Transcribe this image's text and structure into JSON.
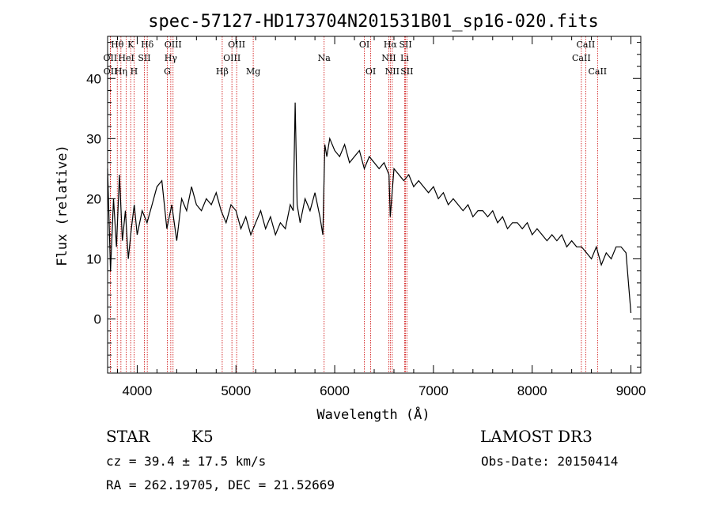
{
  "chart_data": {
    "type": "line",
    "title": "spec-57127-HD173704N201531B01_sp16-020.fits",
    "xlabel": "Wavelength (Å)",
    "ylabel": "Flux (relative)",
    "xlim": [
      3700,
      9100
    ],
    "ylim": [
      -9,
      47
    ],
    "xticks": [
      4000,
      5000,
      6000,
      7000,
      8000,
      9000
    ],
    "yticks": [
      0,
      10,
      20,
      30,
      40
    ],
    "grid": false,
    "series": [
      {
        "name": "spectrum",
        "x": [
          3700,
          3730,
          3760,
          3790,
          3820,
          3850,
          3880,
          3910,
          3940,
          3970,
          4000,
          4050,
          4100,
          4150,
          4200,
          4250,
          4300,
          4350,
          4400,
          4450,
          4500,
          4550,
          4600,
          4650,
          4700,
          4750,
          4800,
          4850,
          4900,
          4950,
          5000,
          5050,
          5100,
          5150,
          5200,
          5250,
          5300,
          5350,
          5400,
          5450,
          5500,
          5550,
          5580,
          5600,
          5620,
          5650,
          5700,
          5750,
          5800,
          5850,
          5880,
          5900,
          5920,
          5950,
          6000,
          6050,
          6100,
          6150,
          6200,
          6250,
          6300,
          6350,
          6400,
          6450,
          6500,
          6550,
          6563,
          6600,
          6650,
          6700,
          6750,
          6800,
          6850,
          6900,
          6950,
          7000,
          7050,
          7100,
          7150,
          7200,
          7250,
          7300,
          7350,
          7400,
          7450,
          7500,
          7550,
          7600,
          7650,
          7700,
          7750,
          7800,
          7850,
          7900,
          7950,
          8000,
          8050,
          8100,
          8150,
          8200,
          8250,
          8300,
          8350,
          8400,
          8450,
          8500,
          8550,
          8600,
          8650,
          8700,
          8750,
          8800,
          8850,
          8900,
          8950,
          9000
        ],
        "values": [
          25,
          8,
          20,
          12,
          24,
          13,
          18,
          10,
          15,
          19,
          14,
          18,
          16,
          19,
          22,
          23,
          15,
          19,
          13,
          20,
          18,
          22,
          19,
          18,
          20,
          19,
          21,
          18,
          16,
          19,
          18,
          15,
          17,
          14,
          16,
          18,
          15,
          17,
          14,
          16,
          15,
          19,
          18,
          36,
          19,
          16,
          20,
          18,
          21,
          17,
          14,
          29,
          27,
          30,
          28,
          27,
          29,
          26,
          27,
          28,
          25,
          27,
          26,
          25,
          26,
          24,
          17,
          25,
          24,
          23,
          24,
          22,
          23,
          22,
          21,
          22,
          20,
          21,
          19,
          20,
          19,
          18,
          19,
          17,
          18,
          18,
          17,
          18,
          16,
          17,
          15,
          16,
          16,
          15,
          16,
          14,
          15,
          14,
          13,
          14,
          13,
          14,
          12,
          13,
          12,
          12,
          11,
          10,
          12,
          9,
          11,
          10,
          12,
          12,
          11,
          1
        ]
      }
    ],
    "spectral_lines": [
      {
        "label": "Hθ",
        "wavelength": 3798,
        "row": 0
      },
      {
        "label": "K",
        "wavelength": 3934,
        "row": 0
      },
      {
        "label": "Hδ",
        "wavelength": 4102,
        "row": 0
      },
      {
        "label": "OIII",
        "wavelength": 4363,
        "row": 0
      },
      {
        "label": "OIII",
        "wavelength": 5007,
        "row": 0
      },
      {
        "label": "OI",
        "wavelength": 6300,
        "row": 0
      },
      {
        "label": "Hα",
        "wavelength": 6563,
        "row": 0
      },
      {
        "label": "SII",
        "wavelength": 6717,
        "row": 0
      },
      {
        "label": "CaII",
        "wavelength": 8542,
        "row": 0
      },
      {
        "label": "OII",
        "wavelength": 3727,
        "row": 1
      },
      {
        "label": "HeI",
        "wavelength": 3889,
        "row": 1
      },
      {
        "label": "SII",
        "wavelength": 4072,
        "row": 1
      },
      {
        "label": "Hγ",
        "wavelength": 4340,
        "row": 1
      },
      {
        "label": "OIII",
        "wavelength": 4959,
        "row": 1
      },
      {
        "label": "Na",
        "wavelength": 5893,
        "row": 1
      },
      {
        "label": "NII",
        "wavelength": 6548,
        "row": 1
      },
      {
        "label": "Li",
        "wavelength": 6708,
        "row": 1
      },
      {
        "label": "CaII",
        "wavelength": 8498,
        "row": 1
      },
      {
        "label": "OII",
        "wavelength": 3729,
        "row": 2
      },
      {
        "label": "Hη",
        "wavelength": 3835,
        "row": 2
      },
      {
        "label": "H",
        "wavelength": 3968,
        "row": 2
      },
      {
        "label": "G",
        "wavelength": 4305,
        "row": 2
      },
      {
        "label": "Hβ",
        "wavelength": 4861,
        "row": 2
      },
      {
        "label": "Mg",
        "wavelength": 5175,
        "row": 2
      },
      {
        "label": "OI",
        "wavelength": 6364,
        "row": 2
      },
      {
        "label": "NII",
        "wavelength": 6583,
        "row": 2
      },
      {
        "label": "SII",
        "wavelength": 6731,
        "row": 2
      },
      {
        "label": "CaII",
        "wavelength": 8662,
        "row": 2
      }
    ]
  },
  "info": {
    "object_class": "STAR",
    "subclass": "K5",
    "survey": "LAMOST DR3",
    "cz": "cz = 39.4 ± 17.5 km/s",
    "obs_date": "Obs-Date: 20150414",
    "coords": "RA = 262.19705, DEC =  21.52669"
  },
  "colors": {
    "line_marker": "#cc0000",
    "spectrum": "#000000",
    "axes": "#000000"
  }
}
